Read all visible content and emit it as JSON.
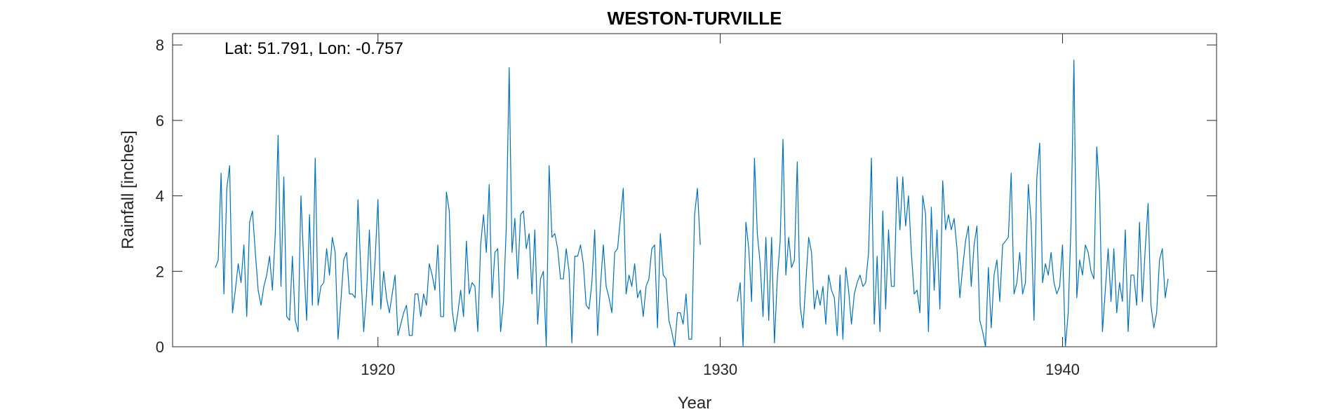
{
  "chart_data": {
    "type": "line",
    "title": "WESTON-TURVILLE",
    "xlabel": "Year",
    "ylabel": "Rainfall [inches]",
    "annotation": "Lat: 51.791, Lon: -0.757",
    "xlim": [
      1914,
      1944.5
    ],
    "ylim": [
      0,
      8.3
    ],
    "x_ticks": [
      1920,
      1930,
      1940
    ],
    "y_ticks": [
      0,
      2,
      4,
      6,
      8
    ],
    "grid": false,
    "line_color": "#0072BD",
    "series": [
      {
        "segments": [
          {
            "start": 1915.25,
            "step": 0.0833333,
            "values": [
              2.1,
              2.3,
              4.6,
              1.4,
              4.2,
              4.8,
              0.9,
              1.5,
              2.2,
              1.7,
              2.7,
              0.8,
              3.3,
              3.6,
              2.5,
              1.5,
              1.1,
              1.6,
              1.9,
              2.4,
              1.5,
              3.0,
              5.6,
              1.6,
              4.5,
              0.8,
              0.7,
              2.4,
              0.7,
              0.4,
              4.0,
              2.2,
              0.7,
              3.5,
              1.1,
              5.0,
              1.1,
              1.6,
              1.7,
              2.6,
              1.9,
              2.9,
              2.5,
              0.2,
              1.2,
              2.3,
              2.5,
              1.4,
              1.4,
              1.3,
              3.9,
              2.0,
              0.4,
              1.4,
              3.1,
              1.1,
              2.3,
              3.9,
              1.0,
              2.0,
              1.3,
              0.9,
              1.4,
              1.9,
              0.3,
              0.6,
              0.9,
              1.1,
              0.3,
              0.3,
              1.4,
              1.4,
              0.8,
              1.4,
              1.1,
              2.2,
              1.9,
              1.5,
              2.7,
              0.8,
              0.8,
              4.1,
              3.6,
              1.0,
              0.4,
              0.9,
              1.5,
              0.8,
              2.8,
              1.4,
              1.7,
              1.6,
              0.4,
              2.7,
              3.5,
              2.5,
              4.3,
              1.3,
              2.5,
              2.6,
              0.4,
              1.2,
              3.2,
              7.4,
              2.5,
              3.4,
              1.8,
              3.5,
              3.6,
              2.6,
              3.0,
              1.4,
              3.1,
              0.6,
              1.8,
              2.0,
              0.0,
              4.8,
              2.9,
              3.0,
              2.6,
              1.8,
              1.8,
              2.6,
              2.0,
              0.1,
              2.4,
              2.4,
              2.7,
              2.2,
              1.1,
              1.0,
              1.7,
              3.1,
              0.3,
              1.6,
              2.7,
              1.6,
              1.3,
              0.9,
              2.5,
              2.6,
              3.4,
              4.2,
              1.4,
              1.9,
              1.6,
              2.2,
              1.3,
              1.5,
              0.8,
              1.6,
              1.8,
              2.6,
              2.7,
              0.5,
              3.0,
              1.9,
              1.8,
              0.7,
              0.4,
              0.0,
              0.9,
              0.9,
              0.6,
              1.4,
              0.2,
              0.2,
              3.5,
              4.2,
              2.7
            ]
          },
          {
            "start": 1930.5,
            "step": 0.0833333,
            "values": [
              1.2,
              1.7,
              0.0,
              3.3,
              2.6,
              1.2,
              5.0,
              3.0,
              2.2,
              0.8,
              2.9,
              0.7,
              2.9,
              0.1,
              1.8,
              2.8,
              5.5,
              1.9,
              2.9,
              2.1,
              2.3,
              4.9,
              1.1,
              0.5,
              1.7,
              2.9,
              2.5,
              1.0,
              1.5,
              1.1,
              1.6,
              0.6,
              1.9,
              1.5,
              1.3,
              0.3,
              1.9,
              0.2,
              2.1,
              1.5,
              0.6,
              1.4,
              1.7,
              1.9,
              1.6,
              1.7,
              2.5,
              5.0,
              0.6,
              2.4,
              0.4,
              3.6,
              1.0,
              3.1,
              1.6,
              1.6,
              4.5,
              3.1,
              4.5,
              3.2,
              4.0,
              2.5,
              1.4,
              1.5,
              0.9,
              4.0,
              3.5,
              0.4,
              3.7,
              1.5,
              3.1,
              1.0,
              4.4,
              3.1,
              3.5,
              3.1,
              3.4,
              2.6,
              1.3,
              2.1,
              2.8,
              3.2,
              1.6,
              2.7,
              3.2,
              0.7,
              0.4,
              0.0,
              2.1,
              0.5,
              1.9,
              2.3,
              1.2,
              2.7,
              2.8,
              2.9,
              4.6,
              1.4,
              1.7,
              2.5,
              1.4,
              1.7,
              4.3,
              3.3,
              0.7,
              4.5,
              5.4,
              1.7,
              2.2,
              1.9,
              2.5,
              1.7,
              1.4,
              1.6,
              2.7,
              0.0,
              0.9,
              3.3,
              7.6,
              1.3,
              2.3,
              1.9,
              2.7,
              2.5,
              2.0,
              1.8,
              5.3,
              4.1,
              0.4,
              1.5,
              2.6,
              1.2,
              2.6,
              0.9,
              1.7,
              1.2,
              3.1,
              0.4,
              1.9,
              1.9,
              1.1,
              3.3,
              1.2,
              2.6,
              3.8,
              1.1,
              0.5,
              0.9,
              2.3,
              2.6,
              1.3,
              1.8
            ]
          }
        ]
      }
    ]
  }
}
